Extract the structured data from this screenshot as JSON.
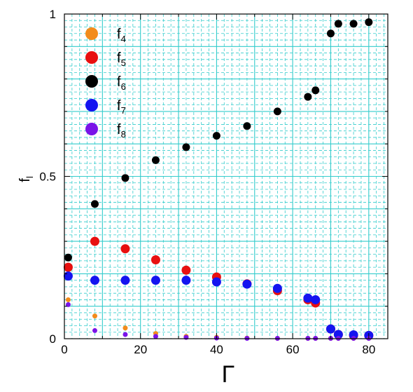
{
  "chart_data": {
    "type": "scatter",
    "xlabel": "Γ",
    "ylabel": {
      "base": "f",
      "sub": "l"
    },
    "xlim": [
      0,
      85
    ],
    "ylim": [
      0,
      1
    ],
    "xticks": [
      0,
      20,
      40,
      60,
      80
    ],
    "yticks": [
      0,
      0.5,
      1
    ],
    "ytick_labels": [
      "0",
      "0.5",
      "1"
    ],
    "grid": true,
    "grid_color": "#33cccc",
    "legend_position": "top-left",
    "series": [
      {
        "name": {
          "base": "f",
          "sub": "4"
        },
        "color": "#f28c1c",
        "marker_size": "small",
        "points": [
          [
            1,
            0.12
          ],
          [
            8,
            0.07
          ],
          [
            16,
            0.033
          ],
          [
            24,
            0.016
          ],
          [
            32,
            0.007
          ],
          [
            40,
            0.004
          ],
          [
            48,
            0.002
          ],
          [
            56,
            0.001
          ],
          [
            64,
            0.001
          ],
          [
            66,
            0.001
          ],
          [
            70,
            0.001
          ],
          [
            72,
            0.001
          ],
          [
            76,
            0.001
          ],
          [
            80,
            0.001
          ]
        ]
      },
      {
        "name": {
          "base": "f",
          "sub": "5"
        },
        "color": "#e81010",
        "marker_size": "large",
        "points": [
          [
            1,
            0.22
          ],
          [
            8,
            0.3
          ],
          [
            16,
            0.277
          ],
          [
            24,
            0.243
          ],
          [
            32,
            0.211
          ],
          [
            40,
            0.19
          ],
          [
            48,
            0.169
          ],
          [
            56,
            0.148
          ],
          [
            64,
            0.12
          ],
          [
            66,
            0.11
          ],
          [
            70,
            0.03
          ],
          [
            72,
            0.013
          ],
          [
            76,
            0.01
          ],
          [
            80,
            0.01
          ]
        ]
      },
      {
        "name": {
          "base": "f",
          "sub": "6"
        },
        "color": "#000000",
        "marker_size": "medium",
        "points": [
          [
            1,
            0.25
          ],
          [
            8,
            0.415
          ],
          [
            16,
            0.495
          ],
          [
            24,
            0.55
          ],
          [
            32,
            0.59
          ],
          [
            40,
            0.625
          ],
          [
            48,
            0.655
          ],
          [
            56,
            0.7
          ],
          [
            64,
            0.745
          ],
          [
            66,
            0.765
          ],
          [
            70,
            0.94
          ],
          [
            72,
            0.97
          ],
          [
            76,
            0.97
          ],
          [
            80,
            0.975
          ]
        ]
      },
      {
        "name": {
          "base": "f",
          "sub": "7"
        },
        "color": "#1414f0",
        "marker_size": "large",
        "points": [
          [
            1,
            0.193
          ],
          [
            8,
            0.18
          ],
          [
            16,
            0.18
          ],
          [
            24,
            0.18
          ],
          [
            32,
            0.18
          ],
          [
            40,
            0.175
          ],
          [
            48,
            0.168
          ],
          [
            56,
            0.155
          ],
          [
            64,
            0.125
          ],
          [
            66,
            0.12
          ],
          [
            70,
            0.03
          ],
          [
            72,
            0.013
          ],
          [
            76,
            0.012
          ],
          [
            80,
            0.01
          ]
        ]
      },
      {
        "name": {
          "base": "f",
          "sub": "8"
        },
        "color": "#7a14e8",
        "marker_size": "small",
        "points": [
          [
            1,
            0.105
          ],
          [
            8,
            0.025
          ],
          [
            16,
            0.013
          ],
          [
            24,
            0.007
          ],
          [
            32,
            0.004
          ],
          [
            40,
            0.002
          ],
          [
            48,
            0.001
          ],
          [
            56,
            0.001
          ],
          [
            64,
            0.001
          ],
          [
            66,
            0.001
          ],
          [
            70,
            0.001
          ],
          [
            72,
            0.001
          ],
          [
            76,
            0.001
          ],
          [
            80,
            0.001
          ]
        ]
      }
    ]
  }
}
